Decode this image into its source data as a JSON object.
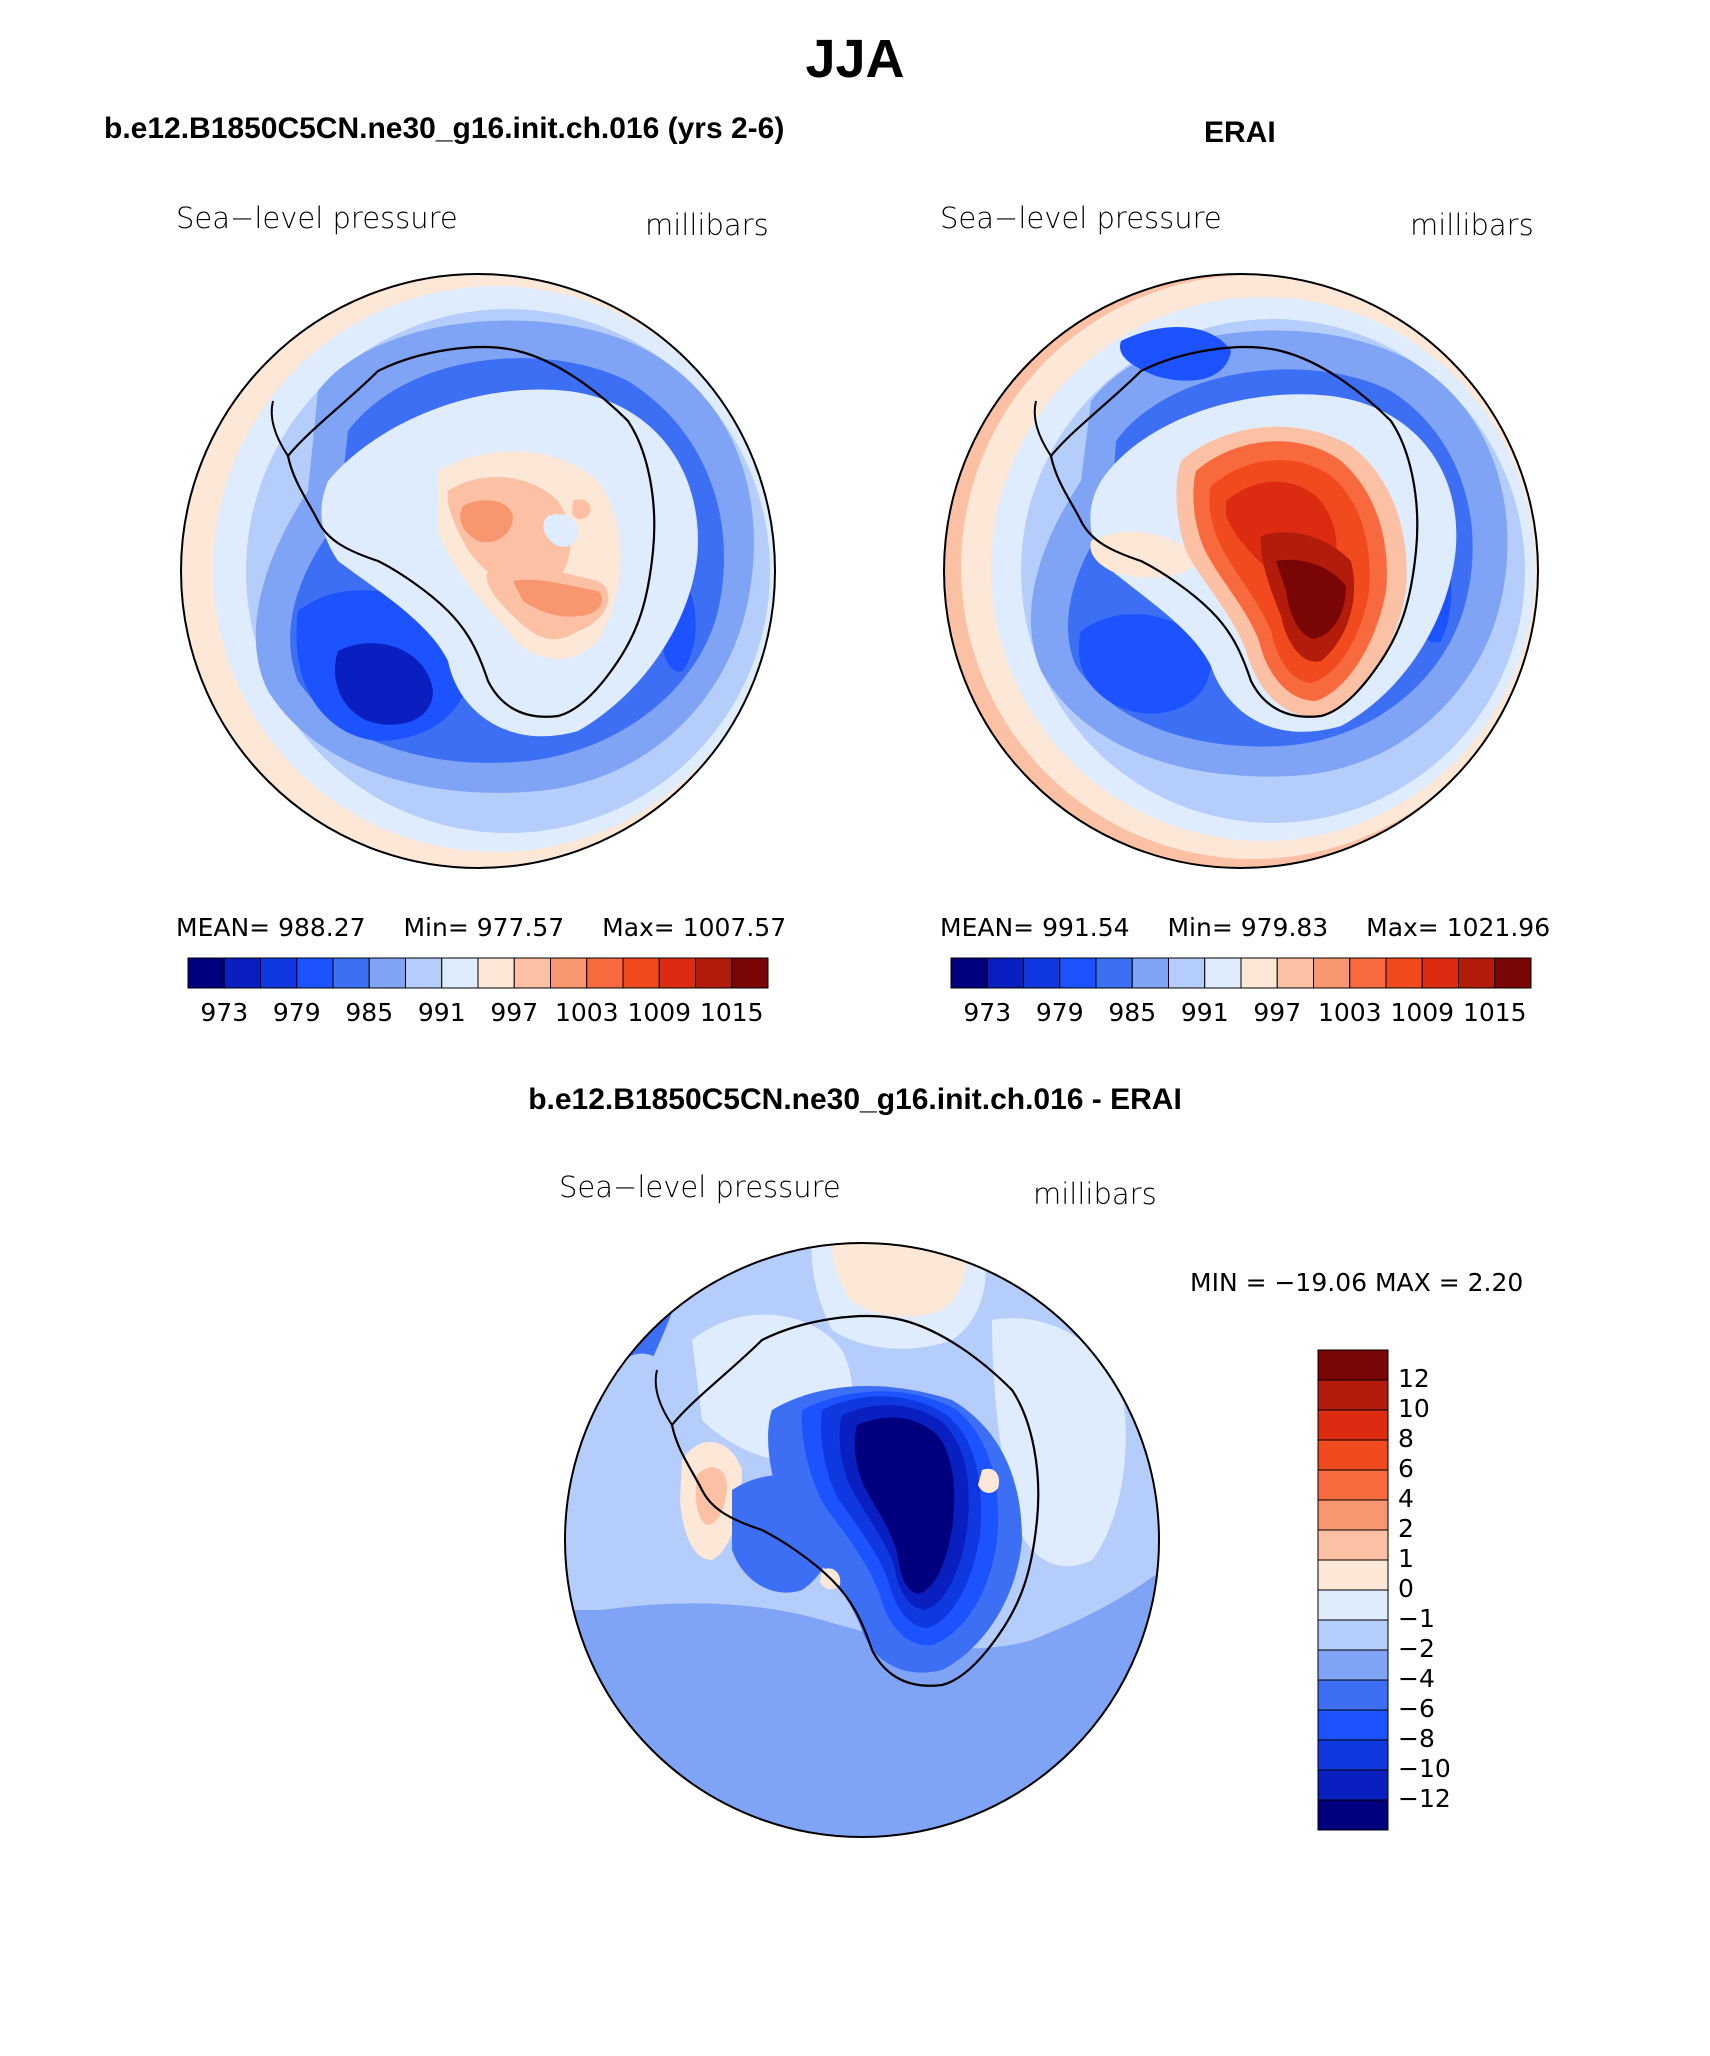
{
  "title": "JJA",
  "palette": [
    "#00007f",
    "#0a1fbf",
    "#0f38e0",
    "#1c52ff",
    "#3d6ff5",
    "#7fa3f5",
    "#b5cdfb",
    "#dfecfd",
    "#fde7d6",
    "#fcc0a4",
    "#f89670",
    "#f86a3e",
    "#f14a1f",
    "#dc2b10",
    "#b31c0b",
    "#7a0505"
  ],
  "diff_palette": [
    "#00007f",
    "#0a1fbf",
    "#0f38e0",
    "#1c52ff",
    "#3d6ff5",
    "#7fa3f5",
    "#b5cdfb",
    "#dfecfd",
    "#fde7d6",
    "#fcc0a4",
    "#f89670",
    "#f86a3e",
    "#f14a1f",
    "#dc2b10",
    "#b31c0b",
    "#7a0505"
  ],
  "panels": {
    "model": {
      "title": "b.e12.B1850C5CN.ne30_g16.init.ch.016 (yrs 2-6)",
      "variable": "Sea−level pressure",
      "units": "millibars",
      "stats": {
        "mean_label": "MEAN=",
        "mean": "988.27",
        "min_label": "Min=",
        "min": "977.57",
        "max_label": "Max=",
        "max": "1007.57"
      },
      "colorbar_ticks": [
        "973",
        "979",
        "985",
        "991",
        "997",
        "1003",
        "1009",
        "1015"
      ]
    },
    "obs": {
      "title": "ERAI",
      "variable": "Sea−level pressure",
      "units": "millibars",
      "stats": {
        "mean_label": "MEAN=",
        "mean": "991.54",
        "min_label": "Min=",
        "min": "979.83",
        "max_label": "Max=",
        "max": "1021.96"
      },
      "colorbar_ticks": [
        "973",
        "979",
        "985",
        "991",
        "997",
        "1003",
        "1009",
        "1015"
      ]
    },
    "diff": {
      "title": "b.e12.B1850C5CN.ne30_g16.init.ch.016 - ERAI",
      "variable": "Sea−level pressure",
      "units": "millibars",
      "minmax": "MIN = −19.06 MAX =    2.20",
      "colorbar_ticks": [
        "12",
        "10",
        "8",
        "6",
        "4",
        "2",
        "1",
        "0",
        "−1",
        "−2",
        "−4",
        "−6",
        "−8",
        "−10",
        "−12"
      ]
    }
  }
}
